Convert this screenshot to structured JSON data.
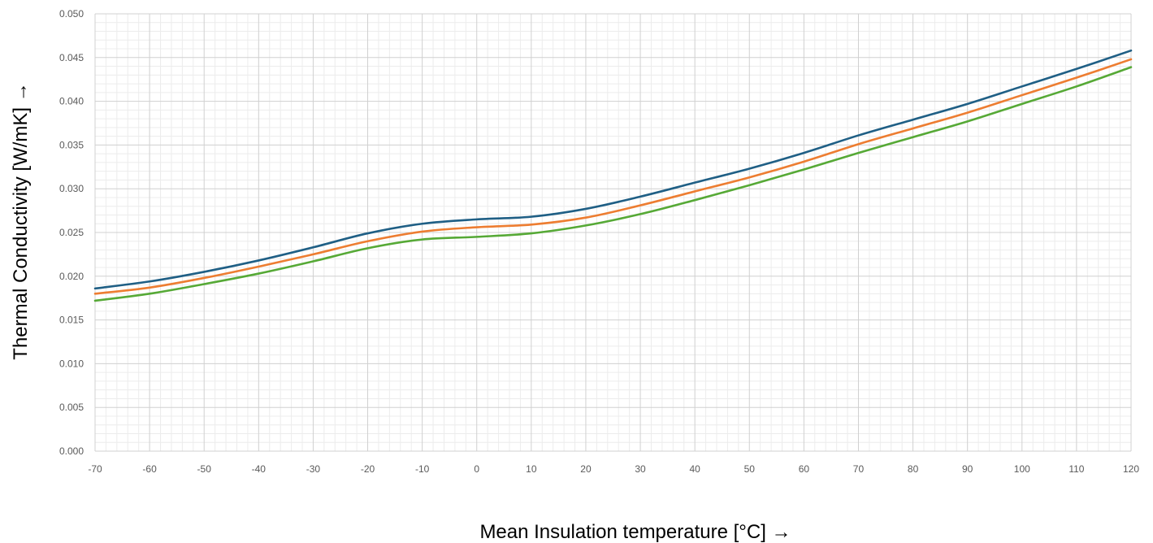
{
  "chart_data": {
    "type": "line",
    "title": "",
    "xlabel": "Mean Insulation temperature [°C] →",
    "ylabel": "Thermal Conductivity [W/mK] →",
    "xlim": [
      -70,
      120
    ],
    "ylim": [
      0,
      0.05
    ],
    "x_ticks": [
      "-70",
      "-60",
      "-50",
      "-40",
      "-30",
      "-20",
      "-10",
      "0",
      "10",
      "20",
      "30",
      "40",
      "50",
      "60",
      "70",
      "80",
      "90",
      "100",
      "110",
      "120"
    ],
    "y_ticks": [
      "0.000",
      "0.005",
      "0.010",
      "0.015",
      "0.020",
      "0.025",
      "0.030",
      "0.035",
      "0.040",
      "0.045",
      "0.050"
    ],
    "grid": true,
    "legend": "none",
    "x": [
      -70,
      -60,
      -50,
      -40,
      -30,
      -20,
      -10,
      0,
      10,
      20,
      30,
      40,
      50,
      60,
      70,
      80,
      90,
      100,
      110,
      120
    ],
    "series": [
      {
        "color": "#1f5f85",
        "values": [
          0.0186,
          0.0194,
          0.0205,
          0.0218,
          0.0233,
          0.0249,
          0.026,
          0.0265,
          0.0268,
          0.0277,
          0.0291,
          0.0307,
          0.0323,
          0.0341,
          0.0361,
          0.0379,
          0.0397,
          0.0417,
          0.0437,
          0.0458
        ]
      },
      {
        "color": "#ed7d31",
        "values": [
          0.018,
          0.0187,
          0.0198,
          0.0211,
          0.0225,
          0.024,
          0.0251,
          0.0256,
          0.0259,
          0.0267,
          0.0281,
          0.0297,
          0.0313,
          0.0331,
          0.0351,
          0.0369,
          0.0387,
          0.0407,
          0.0427,
          0.0448
        ]
      },
      {
        "color": "#56a936",
        "values": [
          0.0172,
          0.018,
          0.0191,
          0.0203,
          0.0217,
          0.0232,
          0.0242,
          0.0245,
          0.0249,
          0.0258,
          0.0271,
          0.0287,
          0.0304,
          0.0322,
          0.0341,
          0.0359,
          0.0377,
          0.0397,
          0.0417,
          0.0439
        ]
      }
    ]
  }
}
